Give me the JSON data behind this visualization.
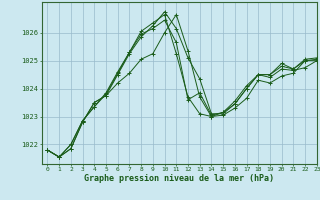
{
  "title": "Graphe pression niveau de la mer (hPa)",
  "background_color": "#cce8f0",
  "grid_color": "#99bbcc",
  "line_color": "#1a5c1a",
  "axis_color": "#336633",
  "xlim": [
    -0.5,
    23
  ],
  "ylim": [
    1021.3,
    1027.1
  ],
  "yticks": [
    1022,
    1023,
    1024,
    1025,
    1026
  ],
  "xticks": [
    0,
    1,
    2,
    3,
    4,
    5,
    6,
    7,
    8,
    9,
    10,
    11,
    12,
    13,
    14,
    15,
    16,
    17,
    18,
    19,
    20,
    21,
    22,
    23
  ],
  "series": [
    [
      1021.8,
      1021.55,
      1021.85,
      1022.8,
      1023.5,
      1023.75,
      1024.2,
      1024.55,
      1025.05,
      1025.25,
      1026.0,
      1026.65,
      1025.35,
      1023.7,
      1023.0,
      1023.05,
      1023.3,
      1023.65,
      1024.3,
      1024.2,
      1024.45,
      1024.55,
      1025.0,
      1025.0
    ],
    [
      1021.8,
      1021.55,
      1021.85,
      1022.8,
      1023.5,
      1023.75,
      1024.5,
      1025.25,
      1025.85,
      1026.25,
      1026.75,
      1026.15,
      1025.1,
      1024.35,
      1023.1,
      1023.1,
      1023.45,
      1024.0,
      1024.5,
      1024.4,
      1024.7,
      1024.65,
      1024.75,
      1025.0
    ],
    [
      1021.8,
      1021.55,
      1022.0,
      1022.85,
      1023.35,
      1023.8,
      1024.55,
      1025.3,
      1025.95,
      1026.15,
      1026.45,
      1025.65,
      1023.6,
      1023.85,
      1023.05,
      1023.15,
      1023.55,
      1024.1,
      1024.5,
      1024.5,
      1024.8,
      1024.7,
      1025.0,
      1025.05
    ],
    [
      1021.8,
      1021.55,
      1022.0,
      1022.85,
      1023.35,
      1023.85,
      1024.6,
      1025.3,
      1026.05,
      1026.35,
      1026.65,
      1025.25,
      1023.7,
      1023.1,
      1023.0,
      1023.15,
      1023.45,
      1024.0,
      1024.5,
      1024.5,
      1024.9,
      1024.7,
      1025.05,
      1025.1
    ]
  ]
}
